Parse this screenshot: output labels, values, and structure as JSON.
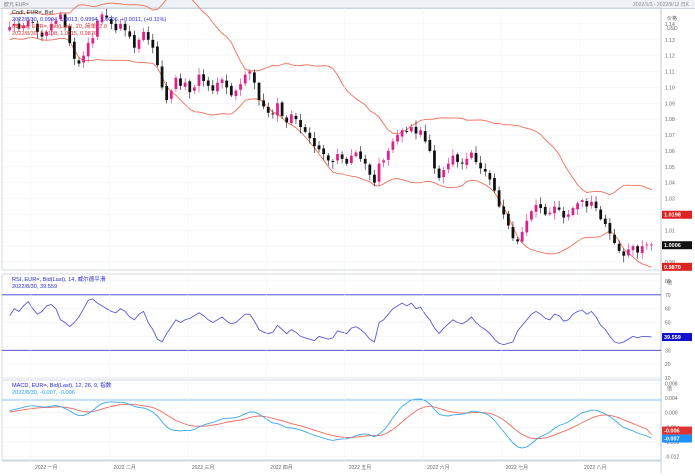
{
  "window": {
    "title_left": "欧元 EUR=",
    "title_right": "2022/1/3 - 2022/9/12 日K"
  },
  "price_panel": {
    "legend_line1": "Cndl, EUR=, Bid",
    "legend_line2": "2022/8/30, 0.9994, 1.0013, 0.9994, 1.0006, +0.0011, (+0.11%)",
    "legend_line3": "BBand, EUR=, Bid(Last), 20, 简单, 2.0",
    "legend_line4": "2022/8/30, 1.0198, 1.0115, 0.9870",
    "unit": "价格",
    "currency": "USD",
    "y_ticks": [
      "1.14",
      "1.13",
      "1.12",
      "1.11",
      "1.10",
      "1.09",
      "1.08",
      "1.07",
      "1.06",
      "1.05",
      "1.04",
      "1.03",
      "1.02",
      "1.01",
      "1.00",
      "0.99"
    ],
    "last_price": "1.0006",
    "band_upper_value": "1.0198",
    "band_lower_value": "0.9870",
    "ylim": [
      0.985,
      1.15
    ]
  },
  "rsi_panel": {
    "legend_line1": "RSI, EUR=, Bid(Last), 14, 威尔德平滑",
    "legend_line2": "2022/8/30, 39.559",
    "unit": "值",
    "y_ticks": [
      "80",
      "70",
      "60",
      "50",
      "40",
      "30",
      "20",
      "10"
    ],
    "last_value": "39.559",
    "ylim": [
      10,
      85
    ]
  },
  "macd_panel": {
    "legend_line1": "MACD, EUR=, Bid(Last), 12, 26, 9, 指数",
    "legend_line2": "2022/8/30, -0.007, -0.006",
    "unit": "值",
    "y_ticks": [
      "0.008",
      "0.004",
      "0.000",
      "-0.004",
      "-0.008",
      "-0.012"
    ],
    "signal_value": "-0.006",
    "macd_value": "-0.007",
    "ylim": [
      -0.013,
      0.009
    ]
  },
  "x_axis": {
    "months": [
      "2022 一月",
      "2022 二月",
      "2022 三月",
      "2022 四月",
      "2022 五月",
      "2022 六月",
      "2022 七月",
      "2022 八月",
      "2022 九月"
    ]
  },
  "colors": {
    "bull": "#e0208a",
    "bear": "#111111",
    "band": "#f0705a",
    "rsi": "#5a5ad8",
    "macd": "#3ba8f0",
    "signal": "#f06a5a",
    "last_box": "#111111",
    "upper_box": "#dd2222",
    "lower_box": "#dd2222",
    "rsi_box": "#1111cc",
    "macd_box": "#1e90ff",
    "signal_box": "#dd3333"
  },
  "chart_data": [
    {
      "type": "candlestick",
      "title": "",
      "xlabel": "",
      "ylabel": "价格",
      "ylim": [
        0.985,
        1.15
      ],
      "bollinger": {
        "period": 20,
        "stddev": 2.0
      },
      "close_path": [
        1.138,
        1.14,
        1.137,
        1.139,
        1.142,
        1.141,
        1.135,
        1.132,
        1.135,
        1.14,
        1.142,
        1.146,
        1.138,
        1.128,
        1.118,
        1.115,
        1.12,
        1.128,
        1.131,
        1.142,
        1.146,
        1.144,
        1.14,
        1.136,
        1.14,
        1.136,
        1.132,
        1.125,
        1.13,
        1.135,
        1.13,
        1.125,
        1.114,
        1.1,
        1.092,
        1.098,
        1.106,
        1.101,
        1.103,
        1.097,
        1.1,
        1.108,
        1.104,
        1.101,
        1.098,
        1.103,
        1.105,
        1.1,
        1.095,
        1.098,
        1.102,
        1.108,
        1.11,
        1.103,
        1.092,
        1.088,
        1.084,
        1.083,
        1.09,
        1.082,
        1.078,
        1.083,
        1.08,
        1.075,
        1.072,
        1.068,
        1.063,
        1.061,
        1.058,
        1.054,
        1.053,
        1.058,
        1.055,
        1.052,
        1.057,
        1.059,
        1.055,
        1.052,
        1.045,
        1.04,
        1.052,
        1.054,
        1.06,
        1.066,
        1.07,
        1.073,
        1.072,
        1.075,
        1.071,
        1.073,
        1.066,
        1.06,
        1.049,
        1.043,
        1.048,
        1.052,
        1.057,
        1.053,
        1.052,
        1.055,
        1.059,
        1.053,
        1.049,
        1.047,
        1.042,
        1.035,
        1.025,
        1.02,
        1.013,
        1.005,
        1.003,
        1.009,
        1.016,
        1.022,
        1.026,
        1.024,
        1.02,
        1.021,
        1.025,
        1.023,
        1.018,
        1.02,
        1.024,
        1.027,
        1.029,
        1.025,
        1.028,
        1.024,
        1.017,
        1.014,
        1.008,
        1.002,
        0.997,
        0.994,
        0.998,
        1.0,
        0.996,
        1.0,
        1.001,
        1.001
      ]
    },
    {
      "type": "line",
      "title": "",
      "ylabel": "",
      "ylim": [
        10,
        85
      ],
      "series": [
        {
          "values": [
            55,
            60,
            58,
            62,
            65,
            60,
            56,
            58,
            62,
            63,
            60,
            52,
            50,
            47,
            50,
            54,
            60,
            66,
            67,
            64,
            62,
            60,
            58,
            57,
            60,
            58,
            54,
            52,
            56,
            58,
            50,
            45,
            38,
            36,
            42,
            47,
            52,
            50,
            52,
            53,
            55,
            57,
            55,
            52,
            50,
            52,
            54,
            51,
            49,
            50,
            53,
            56,
            56,
            51,
            45,
            43,
            42,
            43,
            48,
            45,
            42,
            45,
            43,
            40,
            39,
            38,
            37,
            40,
            39,
            38,
            39,
            44,
            43,
            42,
            46,
            47,
            45,
            42,
            38,
            36,
            50,
            52,
            56,
            60,
            62,
            64,
            62,
            64,
            60,
            61,
            56,
            52,
            46,
            42,
            46,
            49,
            52,
            50,
            49,
            51,
            54,
            50,
            47,
            45,
            42,
            38,
            35,
            34,
            35,
            36,
            44,
            48,
            52,
            56,
            58,
            56,
            53,
            52,
            56,
            55,
            51,
            52,
            56,
            58,
            59,
            56,
            58,
            54,
            48,
            45,
            40,
            36,
            35,
            36,
            38,
            40,
            39,
            40,
            40,
            39.559
          ]
        }
      ]
    },
    {
      "type": "line",
      "title": "",
      "ylabel": "",
      "ylim": [
        -0.013,
        0.009
      ],
      "series": [
        {
          "values": [
            0.0005,
            0.0009,
            0.0012,
            0.0015,
            0.0018,
            0.0019,
            0.0018,
            0.0016,
            0.0016,
            0.0018,
            0.002,
            0.0017,
            0.0012,
            0.0005,
            -0.0003,
            -0.0008,
            -0.0008,
            -0.0002,
            0.0006,
            0.0017,
            0.0025,
            0.0029,
            0.003,
            0.0029,
            0.0029,
            0.0027,
            0.0023,
            0.0017,
            0.0014,
            0.0013,
            0.0009,
            0.0002,
            -0.0009,
            -0.0025,
            -0.0039,
            -0.0047,
            -0.0049,
            -0.005,
            -0.0049,
            -0.0049,
            -0.0046,
            -0.0039,
            -0.0034,
            -0.003,
            -0.0027,
            -0.0022,
            -0.0017,
            -0.0015,
            -0.0015,
            -0.0013,
            -0.0009,
            -0.0003,
            0.0002,
            0.0002,
            -0.0004,
            -0.0012,
            -0.0021,
            -0.0028,
            -0.003,
            -0.0035,
            -0.0041,
            -0.0042,
            -0.0044,
            -0.0048,
            -0.0052,
            -0.0057,
            -0.0062,
            -0.0066,
            -0.007,
            -0.0074,
            -0.0076,
            -0.0074,
            -0.0072,
            -0.0072,
            -0.0068,
            -0.0063,
            -0.006,
            -0.0058,
            -0.0061,
            -0.0066,
            -0.0059,
            -0.0048,
            -0.0033,
            -0.0014,
            0.0003,
            0.0018,
            0.0027,
            0.0035,
            0.0037,
            0.0038,
            0.0033,
            0.0024,
            0.0009,
            -0.0004,
            -0.0008,
            -0.0009,
            -0.0006,
            -0.0005,
            -0.0004,
            -0.0001,
            0.0004,
            0.0004,
            0.0001,
            -0.0002,
            -0.0009,
            -0.0021,
            -0.0037,
            -0.0052,
            -0.0068,
            -0.0083,
            -0.0094,
            -0.0097,
            -0.0094,
            -0.0085,
            -0.0074,
            -0.0066,
            -0.006,
            -0.0053,
            -0.0043,
            -0.0035,
            -0.0031,
            -0.0025,
            -0.0017,
            -0.0008,
            0.0,
            0.0003,
            0.0007,
            0.0007,
            0.0002,
            -0.0003,
            -0.0011,
            -0.002,
            -0.0031,
            -0.0041,
            -0.0045,
            -0.005,
            -0.0056,
            -0.006,
            -0.0064,
            -0.007
          ]
        },
        {
          "values": [
            0.0002,
            0.0004,
            0.0006,
            0.0008,
            0.001,
            0.0012,
            0.0013,
            0.0014,
            0.0014,
            0.0015,
            0.0016,
            0.0016,
            0.0015,
            0.0013,
            0.001,
            0.0006,
            0.0003,
            0.0002,
            0.0003,
            0.0006,
            0.001,
            0.0014,
            0.0017,
            0.002,
            0.0022,
            0.0023,
            0.0023,
            0.0022,
            0.0021,
            0.0019,
            0.0017,
            0.0014,
            0.0009,
            0.0002,
            -0.0006,
            -0.0014,
            -0.0021,
            -0.0027,
            -0.0031,
            -0.0035,
            -0.0037,
            -0.0037,
            -0.0037,
            -0.0036,
            -0.0034,
            -0.0032,
            -0.0029,
            -0.0026,
            -0.0024,
            -0.0022,
            -0.002,
            -0.0017,
            -0.0013,
            -0.001,
            -0.0009,
            -0.001,
            -0.0012,
            -0.0016,
            -0.0019,
            -0.0022,
            -0.0026,
            -0.003,
            -0.0033,
            -0.0036,
            -0.004,
            -0.0044,
            -0.0048,
            -0.0052,
            -0.0056,
            -0.006,
            -0.0063,
            -0.0066,
            -0.0067,
            -0.0068,
            -0.0068,
            -0.0067,
            -0.0066,
            -0.0064,
            -0.0063,
            -0.0063,
            -0.0063,
            -0.006,
            -0.0054,
            -0.0046,
            -0.0036,
            -0.0025,
            -0.0014,
            -0.0004,
            0.0005,
            0.0012,
            0.0016,
            0.0018,
            0.0016,
            0.0012,
            0.0008,
            0.0004,
            0.0002,
            0.0,
            -0.0001,
            -0.0001,
            0.0,
            0.0001,
            0.0001,
            0.0,
            -0.0002,
            -0.0006,
            -0.0012,
            -0.002,
            -0.003,
            -0.0041,
            -0.0051,
            -0.006,
            -0.0066,
            -0.007,
            -0.0071,
            -0.0071,
            -0.0069,
            -0.0066,
            -0.0061,
            -0.0056,
            -0.0051,
            -0.0046,
            -0.004,
            -0.0034,
            -0.0027,
            -0.0021,
            -0.0015,
            -0.001,
            -0.0007,
            -0.0006,
            -0.0007,
            -0.001,
            -0.0014,
            -0.002,
            -0.0025,
            -0.003,
            -0.0035,
            -0.004,
            -0.0045,
            -0.006
          ]
        }
      ]
    }
  ]
}
